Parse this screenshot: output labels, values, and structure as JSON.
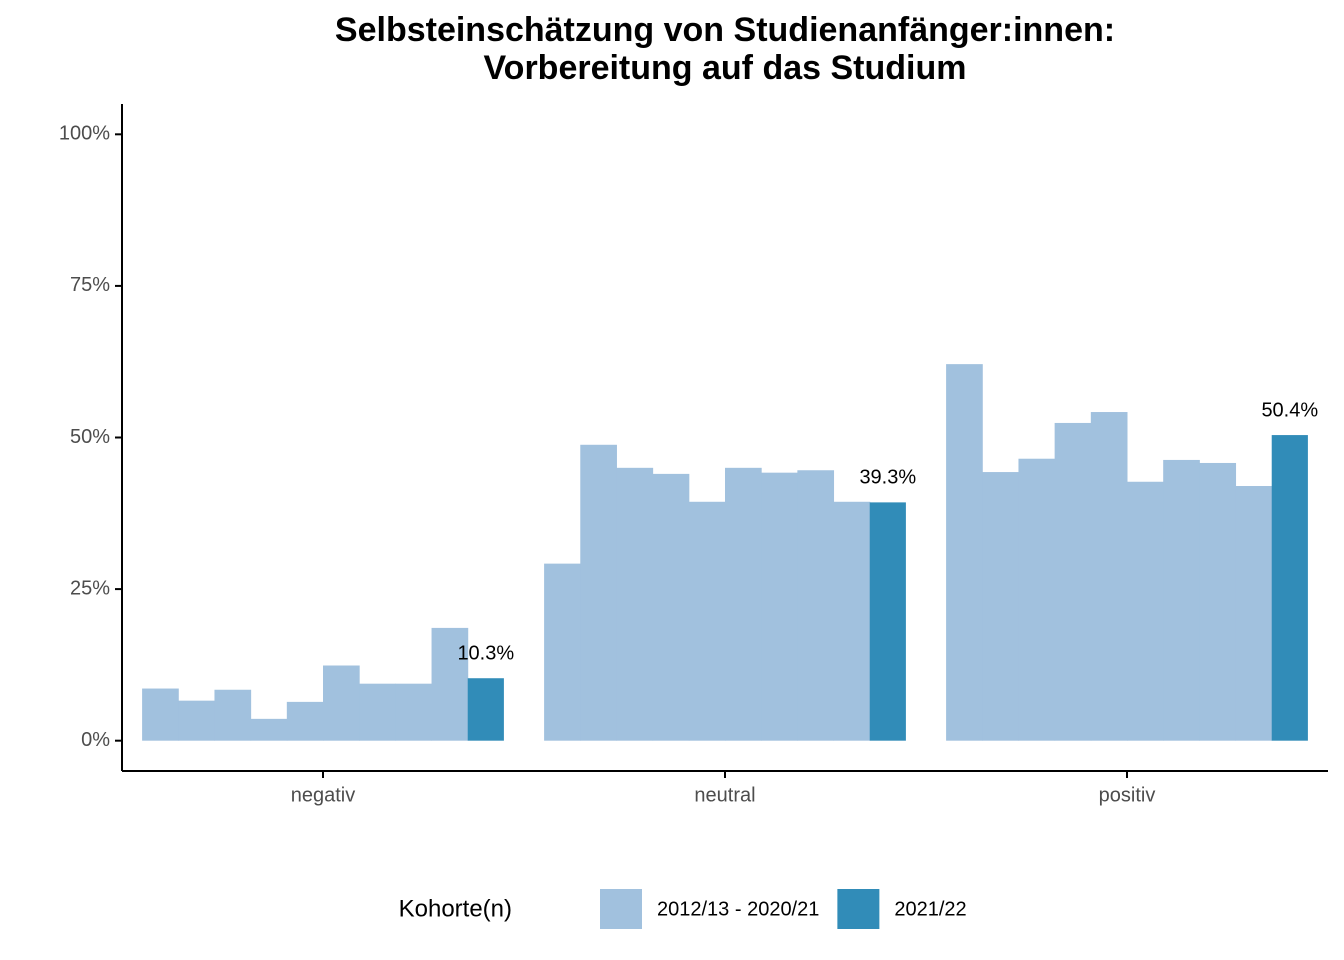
{
  "chart_data": {
    "type": "bar",
    "title": [
      "Selbsteinschätzung von Studienanfänger:innen:",
      "Vorbereitung auf das Studium"
    ],
    "categories": [
      "negativ",
      "neutral",
      "positiv"
    ],
    "legend_title": "Kohorte(n)",
    "legend_position": "bottom",
    "series": [
      {
        "name": "2012/13 - 2020/21",
        "color": "#a1c1de",
        "values": [
          [
            8.6,
            6.6,
            8.4,
            3.6,
            6.4,
            12.4,
            9.4,
            9.4,
            18.6
          ],
          [
            29.2,
            48.8,
            45.0,
            44.0,
            39.4,
            45.0,
            44.2,
            44.6,
            39.4
          ],
          [
            62.1,
            44.3,
            46.5,
            52.4,
            54.2,
            42.7,
            46.3,
            45.8,
            42.0
          ]
        ]
      },
      {
        "name": "2021/22",
        "color": "#318cb8",
        "values": [
          10.3,
          39.3,
          50.4
        ],
        "value_labels": [
          "10.3%",
          "39.3%",
          "50.4%"
        ]
      }
    ],
    "ylim": [
      -5,
      105
    ],
    "yticks": [
      {
        "value": 0,
        "label": "0%"
      },
      {
        "value": 25,
        "label": "25%"
      },
      {
        "value": 50,
        "label": "50%"
      },
      {
        "value": 75,
        "label": "75%"
      },
      {
        "value": 100,
        "label": "100%"
      }
    ]
  }
}
